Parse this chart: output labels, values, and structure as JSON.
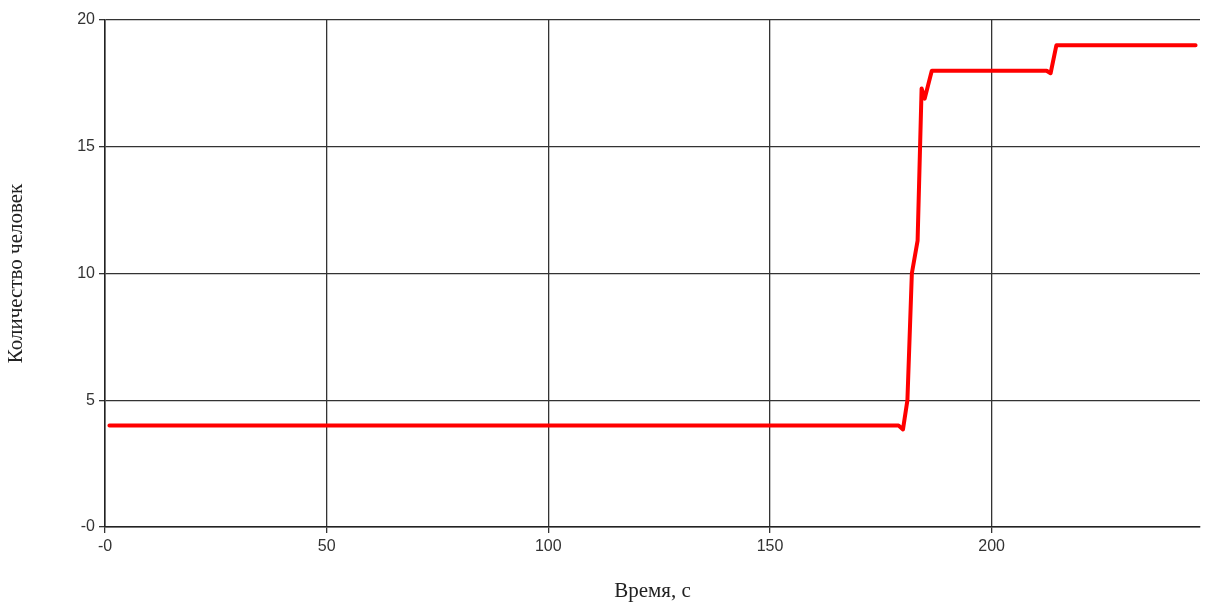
{
  "chart_data": {
    "type": "line",
    "xlabel": "Время, с",
    "ylabel": "Количество человек",
    "series": [
      {
        "color": "#ff0000",
        "x": [
          1,
          179,
          180,
          181,
          182,
          183.3,
          184.2,
          184.9,
          186.5,
          212.4,
          213.3,
          214.6,
          246
        ],
        "values": [
          4,
          4,
          3.85,
          5,
          10,
          11.3,
          17.3,
          16.9,
          18,
          18,
          17.9,
          19,
          19
        ]
      }
    ],
    "xlim": [
      0,
      247
    ],
    "xticks": [
      {
        "value": 0,
        "label": "-0"
      },
      50,
      100,
      150,
      200
    ],
    "ylim": [
      0,
      20
    ],
    "yticks": [
      {
        "value": 0,
        "label": "-0"
      },
      5,
      10,
      15,
      20
    ],
    "grid": true,
    "legend": false,
    "marker": "none",
    "line_style": "solid"
  }
}
